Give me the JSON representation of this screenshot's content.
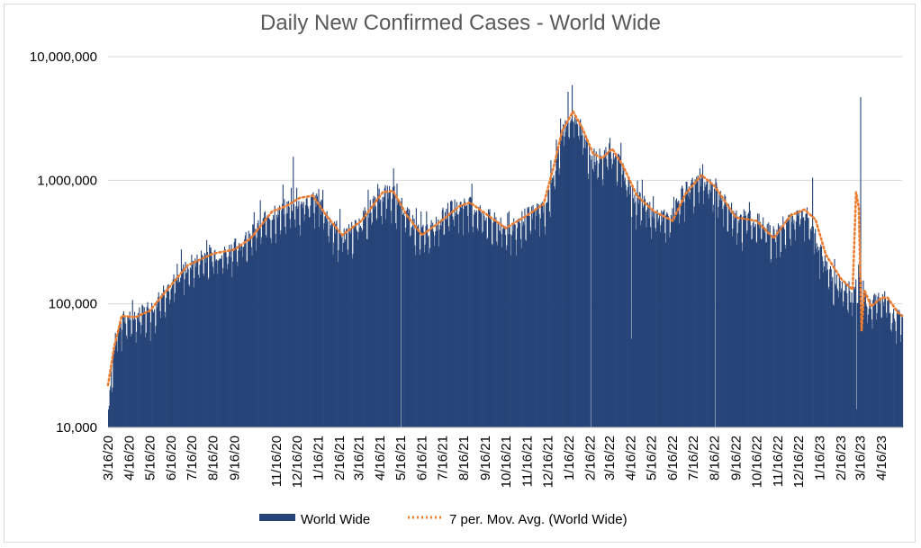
{
  "chart_data": {
    "type": "bar",
    "title": "Daily New Confirmed Cases - World Wide",
    "yscale": "log",
    "ylim": [
      10000,
      10000000
    ],
    "y_ticks": [
      {
        "value": 10000,
        "label": "10,000"
      },
      {
        "value": 100000,
        "label": "100,000"
      },
      {
        "value": 1000000,
        "label": "1,000,000"
      },
      {
        "value": 10000000,
        "label": "10,000,000"
      }
    ],
    "x_range": [
      "2020-03-16",
      "2023-05-16"
    ],
    "x_ticks": [
      {
        "date": "2020-03-16",
        "label": "3/16/20"
      },
      {
        "date": "2020-04-16",
        "label": "4/16/20"
      },
      {
        "date": "2020-05-16",
        "label": "5/16/20"
      },
      {
        "date": "2020-06-16",
        "label": "6/16/20"
      },
      {
        "date": "2020-07-16",
        "label": "7/16/20"
      },
      {
        "date": "2020-08-16",
        "label": "8/16/20"
      },
      {
        "date": "2020-09-16",
        "label": "9/16/20"
      },
      {
        "date": "2020-11-16",
        "label": "11/16/20"
      },
      {
        "date": "2020-12-16",
        "label": "12/16/20"
      },
      {
        "date": "2021-01-16",
        "label": "1/16/21"
      },
      {
        "date": "2021-02-16",
        "label": "2/16/21"
      },
      {
        "date": "2021-03-16",
        "label": "3/16/21"
      },
      {
        "date": "2021-04-16",
        "label": "4/16/21"
      },
      {
        "date": "2021-05-16",
        "label": "5/16/21"
      },
      {
        "date": "2021-06-16",
        "label": "6/16/21"
      },
      {
        "date": "2021-07-16",
        "label": "7/16/21"
      },
      {
        "date": "2021-08-16",
        "label": "8/16/21"
      },
      {
        "date": "2021-09-16",
        "label": "9/16/21"
      },
      {
        "date": "2021-10-16",
        "label": "10/16/21"
      },
      {
        "date": "2021-11-16",
        "label": "11/16/21"
      },
      {
        "date": "2021-12-16",
        "label": "12/16/21"
      },
      {
        "date": "2022-01-16",
        "label": "1/16/22"
      },
      {
        "date": "2022-02-16",
        "label": "2/16/22"
      },
      {
        "date": "2022-03-16",
        "label": "3/16/22"
      },
      {
        "date": "2022-04-16",
        "label": "4/16/22"
      },
      {
        "date": "2022-05-16",
        "label": "5/16/22"
      },
      {
        "date": "2022-06-16",
        "label": "6/16/22"
      },
      {
        "date": "2022-07-16",
        "label": "7/16/22"
      },
      {
        "date": "2022-08-16",
        "label": "8/16/22"
      },
      {
        "date": "2022-09-16",
        "label": "9/16/22"
      },
      {
        "date": "2022-10-16",
        "label": "10/16/22"
      },
      {
        "date": "2022-11-16",
        "label": "11/16/22"
      },
      {
        "date": "2022-12-16",
        "label": "12/16/22"
      },
      {
        "date": "2023-01-16",
        "label": "1/16/23"
      },
      {
        "date": "2023-02-16",
        "label": "2/16/23"
      },
      {
        "date": "2023-03-16",
        "label": "3/16/23"
      },
      {
        "date": "2023-04-16",
        "label": "4/16/23"
      }
    ],
    "series": [
      {
        "name": "World Wide",
        "kind": "bar",
        "color": "#264478",
        "approx_daily_level": [
          {
            "date": "2020-03-16",
            "value": 14000
          },
          {
            "date": "2020-03-20",
            "value": 30000
          },
          {
            "date": "2020-03-28",
            "value": 60000
          },
          {
            "date": "2020-04-05",
            "value": 80000
          },
          {
            "date": "2020-04-20",
            "value": 80000
          },
          {
            "date": "2020-05-10",
            "value": 85000
          },
          {
            "date": "2020-06-01",
            "value": 115000
          },
          {
            "date": "2020-07-01",
            "value": 190000
          },
          {
            "date": "2020-08-01",
            "value": 250000
          },
          {
            "date": "2020-09-01",
            "value": 265000
          },
          {
            "date": "2020-10-01",
            "value": 320000
          },
          {
            "date": "2020-11-01",
            "value": 520000
          },
          {
            "date": "2020-11-25",
            "value": 600000
          },
          {
            "date": "2020-12-20",
            "value": 650000
          },
          {
            "date": "2021-01-10",
            "value": 720000
          },
          {
            "date": "2021-02-01",
            "value": 480000
          },
          {
            "date": "2021-02-20",
            "value": 360000
          },
          {
            "date": "2021-03-16",
            "value": 450000
          },
          {
            "date": "2021-04-16",
            "value": 780000
          },
          {
            "date": "2021-05-05",
            "value": 800000
          },
          {
            "date": "2021-05-25",
            "value": 520000
          },
          {
            "date": "2021-06-15",
            "value": 380000
          },
          {
            "date": "2021-07-01",
            "value": 420000
          },
          {
            "date": "2021-07-25",
            "value": 580000
          },
          {
            "date": "2021-08-20",
            "value": 650000
          },
          {
            "date": "2021-09-10",
            "value": 560000
          },
          {
            "date": "2021-10-16",
            "value": 400000
          },
          {
            "date": "2021-11-10",
            "value": 500000
          },
          {
            "date": "2021-12-10",
            "value": 620000
          },
          {
            "date": "2021-12-25",
            "value": 1200000
          },
          {
            "date": "2022-01-05",
            "value": 2400000
          },
          {
            "date": "2022-01-20",
            "value": 3500000
          },
          {
            "date": "2022-02-01",
            "value": 2800000
          },
          {
            "date": "2022-02-16",
            "value": 1600000
          },
          {
            "date": "2022-03-01",
            "value": 1500000
          },
          {
            "date": "2022-03-16",
            "value": 1800000
          },
          {
            "date": "2022-04-01",
            "value": 1400000
          },
          {
            "date": "2022-04-16",
            "value": 800000
          },
          {
            "date": "2022-05-16",
            "value": 550000
          },
          {
            "date": "2022-06-10",
            "value": 500000
          },
          {
            "date": "2022-07-01",
            "value": 800000
          },
          {
            "date": "2022-07-25",
            "value": 1050000
          },
          {
            "date": "2022-08-16",
            "value": 900000
          },
          {
            "date": "2022-09-16",
            "value": 520000
          },
          {
            "date": "2022-10-16",
            "value": 480000
          },
          {
            "date": "2022-11-10",
            "value": 360000
          },
          {
            "date": "2022-12-01",
            "value": 500000
          },
          {
            "date": "2022-12-25",
            "value": 570000
          },
          {
            "date": "2023-01-16",
            "value": 300000
          },
          {
            "date": "2023-02-01",
            "value": 200000
          },
          {
            "date": "2023-02-16",
            "value": 160000
          },
          {
            "date": "2023-03-01",
            "value": 130000
          },
          {
            "date": "2023-03-16",
            "value": 200000
          },
          {
            "date": "2023-03-25",
            "value": 92000
          },
          {
            "date": "2023-04-05",
            "value": 110000
          },
          {
            "date": "2023-04-22",
            "value": 112000
          },
          {
            "date": "2023-05-01",
            "value": 80000
          },
          {
            "date": "2023-05-16",
            "value": 78000
          }
        ],
        "notable_spikes": [
          {
            "date": "2020-12-10",
            "value": 1550000
          },
          {
            "date": "2021-01-16",
            "value": 850000
          },
          {
            "date": "2021-05-05",
            "value": 1250000
          },
          {
            "date": "2022-01-20",
            "value": 5900000
          },
          {
            "date": "2022-01-14",
            "value": 5200000
          },
          {
            "date": "2022-03-16",
            "value": 2200000
          },
          {
            "date": "2022-07-29",
            "value": 1350000
          },
          {
            "date": "2023-01-05",
            "value": 1050000
          },
          {
            "date": "2023-03-16",
            "value": 4700000
          }
        ],
        "notable_dips": [
          {
            "date": "2021-05-16",
            "value": 10000
          },
          {
            "date": "2022-02-16",
            "value": 10000
          },
          {
            "date": "2022-08-16",
            "value": 10000
          },
          {
            "date": "2022-04-16",
            "value": 52000
          },
          {
            "date": "2023-03-10",
            "value": 14000
          }
        ]
      },
      {
        "name": "7 per. Mov. Avg. (World Wide)",
        "kind": "line",
        "style": "dotted",
        "color": "#ED7D31",
        "values": [
          {
            "date": "2020-03-16",
            "value": 22000
          },
          {
            "date": "2020-03-25",
            "value": 45000
          },
          {
            "date": "2020-04-05",
            "value": 80000
          },
          {
            "date": "2020-04-25",
            "value": 78000
          },
          {
            "date": "2020-05-16",
            "value": 88000
          },
          {
            "date": "2020-06-10",
            "value": 130000
          },
          {
            "date": "2020-07-10",
            "value": 205000
          },
          {
            "date": "2020-08-16",
            "value": 255000
          },
          {
            "date": "2020-09-16",
            "value": 275000
          },
          {
            "date": "2020-10-10",
            "value": 340000
          },
          {
            "date": "2020-11-10",
            "value": 560000
          },
          {
            "date": "2020-12-01",
            "value": 620000
          },
          {
            "date": "2020-12-20",
            "value": 720000
          },
          {
            "date": "2021-01-08",
            "value": 750000
          },
          {
            "date": "2021-01-30",
            "value": 500000
          },
          {
            "date": "2021-02-20",
            "value": 360000
          },
          {
            "date": "2021-03-20",
            "value": 470000
          },
          {
            "date": "2021-04-20",
            "value": 800000
          },
          {
            "date": "2021-05-05",
            "value": 820000
          },
          {
            "date": "2021-05-25",
            "value": 520000
          },
          {
            "date": "2021-06-16",
            "value": 360000
          },
          {
            "date": "2021-07-10",
            "value": 450000
          },
          {
            "date": "2021-08-10",
            "value": 620000
          },
          {
            "date": "2021-08-25",
            "value": 660000
          },
          {
            "date": "2021-09-20",
            "value": 520000
          },
          {
            "date": "2021-10-16",
            "value": 410000
          },
          {
            "date": "2021-11-16",
            "value": 520000
          },
          {
            "date": "2021-12-10",
            "value": 640000
          },
          {
            "date": "2021-12-25",
            "value": 1300000
          },
          {
            "date": "2022-01-06",
            "value": 2500000
          },
          {
            "date": "2022-01-22",
            "value": 3600000
          },
          {
            "date": "2022-02-05",
            "value": 2600000
          },
          {
            "date": "2022-02-20",
            "value": 1650000
          },
          {
            "date": "2022-03-05",
            "value": 1500000
          },
          {
            "date": "2022-03-20",
            "value": 1800000
          },
          {
            "date": "2022-04-05",
            "value": 1300000
          },
          {
            "date": "2022-04-25",
            "value": 750000
          },
          {
            "date": "2022-05-20",
            "value": 560000
          },
          {
            "date": "2022-06-16",
            "value": 470000
          },
          {
            "date": "2022-07-05",
            "value": 780000
          },
          {
            "date": "2022-07-28",
            "value": 1100000
          },
          {
            "date": "2022-08-16",
            "value": 900000
          },
          {
            "date": "2022-09-16",
            "value": 500000
          },
          {
            "date": "2022-10-16",
            "value": 470000
          },
          {
            "date": "2022-11-10",
            "value": 340000
          },
          {
            "date": "2022-12-05",
            "value": 520000
          },
          {
            "date": "2022-12-25",
            "value": 580000
          },
          {
            "date": "2023-01-10",
            "value": 480000
          },
          {
            "date": "2023-01-25",
            "value": 250000
          },
          {
            "date": "2023-02-16",
            "value": 160000
          },
          {
            "date": "2023-03-05",
            "value": 130000
          },
          {
            "date": "2023-03-10",
            "value": 800000
          },
          {
            "date": "2023-03-14",
            "value": 600000
          },
          {
            "date": "2023-03-18",
            "value": 60000
          },
          {
            "date": "2023-03-22",
            "value": 130000
          },
          {
            "date": "2023-04-01",
            "value": 95000
          },
          {
            "date": "2023-04-16",
            "value": 112000
          },
          {
            "date": "2023-04-25",
            "value": 112000
          },
          {
            "date": "2023-05-10",
            "value": 85000
          },
          {
            "date": "2023-05-16",
            "value": 80000
          }
        ]
      }
    ],
    "legend": {
      "position": "bottom",
      "entries": [
        "World Wide",
        "7 per. Mov. Avg. (World Wide)"
      ]
    },
    "grid": true
  }
}
